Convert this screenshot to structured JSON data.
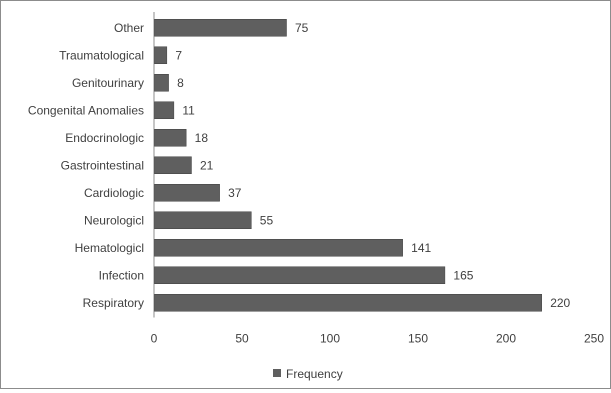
{
  "chart_data": {
    "type": "bar",
    "orientation": "horizontal",
    "categories": [
      "Respiratory",
      "Infection",
      "Hematologicl",
      "Neurologicl",
      "Cardiologic",
      "Gastrointestinal",
      "Endocrinologic",
      "Congenital Anomalies",
      "Genitourinary",
      "Traumatological",
      "Other"
    ],
    "series": [
      {
        "name": "Frequency",
        "values": [
          220,
          165,
          141,
          55,
          37,
          21,
          18,
          11,
          8,
          7,
          75
        ]
      }
    ],
    "xlim": [
      0,
      250
    ],
    "xticks": [
      0,
      50,
      100,
      150,
      200,
      250
    ],
    "xtick_labels": [
      "0",
      "50",
      "100",
      "150",
      "200",
      "250"
    ],
    "grid": false,
    "legend_position": "bottom",
    "data_labels": true,
    "colors": {
      "bar": "#5f5f5f",
      "bar_edge": "#3f3f3f",
      "text": "#404040",
      "axis": "#8c8c8c"
    }
  }
}
